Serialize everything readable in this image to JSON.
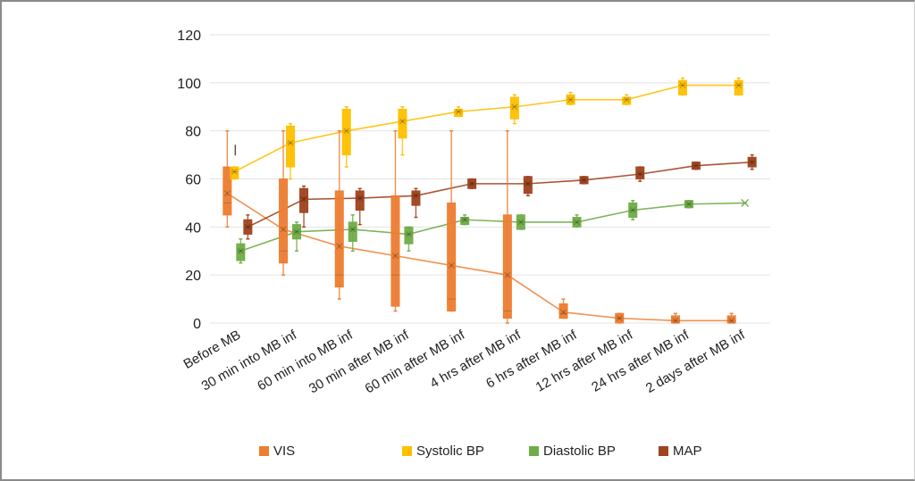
{
  "chart_data": {
    "type": "box",
    "title": "",
    "xlabel": "",
    "ylabel": "",
    "ylim": [
      0,
      120
    ],
    "yticks": [
      0,
      20,
      40,
      60,
      80,
      100,
      120
    ],
    "grid": true,
    "legend_position": "bottom",
    "categories": [
      "Before MB",
      "30 min into MB inf",
      "60 min into MB inf",
      "30 min after MB inf",
      "60 min after MB inf",
      "4 hrs after MB inf",
      "6 hrs after MB inf",
      "12 hrs after MB inf",
      "24 hrs after MB inf",
      "2 days after MB inf"
    ],
    "series": [
      {
        "name": "VIS",
        "color": "#ED7D31",
        "boxes": [
          {
            "min": 40,
            "q1": 45,
            "median": 50,
            "q3": 65,
            "max": 80,
            "mean": 54
          },
          {
            "min": 20,
            "q1": 25,
            "median": 30,
            "q3": 60,
            "max": 80,
            "mean": 39
          },
          {
            "min": 10,
            "q1": 15,
            "median": 20,
            "q3": 55,
            "max": 80,
            "mean": 32
          },
          {
            "min": 5,
            "q1": 7,
            "median": 20,
            "q3": 53,
            "max": 80,
            "mean": 28
          },
          {
            "min": 5,
            "q1": 5,
            "median": 10,
            "q3": 50,
            "max": 80,
            "mean": 24
          },
          {
            "min": 0,
            "q1": 2,
            "median": 5,
            "q3": 45,
            "max": 80,
            "mean": 20
          },
          {
            "min": 2,
            "q1": 2,
            "median": 4,
            "q3": 8,
            "max": 10,
            "mean": 4.5
          },
          {
            "min": 0,
            "q1": 0,
            "median": 2,
            "q3": 4,
            "max": 4,
            "mean": 2
          },
          {
            "min": 0,
            "q1": 0,
            "median": 1,
            "q3": 3,
            "max": 4,
            "mean": 1
          },
          {
            "min": 0,
            "q1": 0,
            "median": 1,
            "q3": 3,
            "max": 4,
            "mean": 1
          }
        ]
      },
      {
        "name": "Systolic BP",
        "color": "#FFC000",
        "boxes": [
          {
            "min": 60,
            "q1": 60,
            "median": 63,
            "q3": 65,
            "max": 65,
            "mean": 63
          },
          {
            "min": 60,
            "q1": 65,
            "median": 75,
            "q3": 82,
            "max": 83,
            "mean": 75
          },
          {
            "min": 65,
            "q1": 70,
            "median": 80,
            "q3": 89,
            "max": 90,
            "mean": 80
          },
          {
            "min": 70,
            "q1": 77,
            "median": 84,
            "q3": 89,
            "max": 90,
            "mean": 84
          },
          {
            "min": 86,
            "q1": 86,
            "median": 88,
            "q3": 89,
            "max": 90,
            "mean": 88
          },
          {
            "min": 83,
            "q1": 85,
            "median": 90,
            "q3": 94,
            "max": 95,
            "mean": 90
          },
          {
            "min": 91,
            "q1": 91,
            "median": 93,
            "q3": 95,
            "max": 96,
            "mean": 93
          },
          {
            "min": 91,
            "q1": 91,
            "median": 93,
            "q3": 94,
            "max": 95,
            "mean": 93
          },
          {
            "min": 95,
            "q1": 95,
            "median": 99,
            "q3": 101,
            "max": 102,
            "mean": 99
          },
          {
            "min": 95,
            "q1": 95,
            "median": 99,
            "q3": 101,
            "max": 102,
            "mean": 99
          }
        ]
      },
      {
        "name": "Diastolic BP",
        "color": "#70AD47",
        "boxes": [
          {
            "min": 25,
            "q1": 26,
            "median": 30,
            "q3": 33,
            "max": 35,
            "mean": 30
          },
          {
            "min": 30,
            "q1": 35,
            "median": 38,
            "q3": 41,
            "max": 42,
            "mean": 38
          },
          {
            "min": 30,
            "q1": 34,
            "median": 39,
            "q3": 42,
            "max": 45,
            "mean": 39
          },
          {
            "min": 30,
            "q1": 33,
            "median": 37,
            "q3": 40,
            "max": 40,
            "mean": 37
          },
          {
            "min": 41,
            "q1": 41,
            "median": 43,
            "q3": 44,
            "max": 45,
            "mean": 43
          },
          {
            "min": 39,
            "q1": 39,
            "median": 42,
            "q3": 45,
            "max": 45,
            "mean": 42
          },
          {
            "min": 40,
            "q1": 40,
            "median": 42,
            "q3": 44,
            "max": 45,
            "mean": 42
          },
          {
            "min": 43,
            "q1": 44,
            "median": 47,
            "q3": 50,
            "max": 51,
            "mean": 47
          },
          {
            "min": 48,
            "q1": 48,
            "median": 49.5,
            "q3": 51,
            "max": 51,
            "mean": 49.5
          },
          {
            "min": 50,
            "q1": 50,
            "median": 50,
            "q3": 50,
            "max": 50,
            "mean": 50
          }
        ]
      },
      {
        "name": "MAP",
        "color": "#A0431F",
        "boxes": [
          {
            "min": 35,
            "q1": 37,
            "median": 40,
            "q3": 43,
            "max": 45,
            "mean": 40
          },
          {
            "min": 40,
            "q1": 46,
            "median": 52,
            "q3": 56,
            "max": 57,
            "mean": 51.5
          },
          {
            "min": 41,
            "q1": 47,
            "median": 52,
            "q3": 55,
            "max": 56,
            "mean": 52
          },
          {
            "min": 44,
            "q1": 49,
            "median": 53,
            "q3": 55,
            "max": 56,
            "mean": 53
          },
          {
            "min": 56,
            "q1": 56,
            "median": 58,
            "q3": 60,
            "max": 60,
            "mean": 58
          },
          {
            "min": 53,
            "q1": 54,
            "median": 58,
            "q3": 61,
            "max": 61,
            "mean": 58
          },
          {
            "min": 58,
            "q1": 58,
            "median": 59.5,
            "q3": 61,
            "max": 61,
            "mean": 59.5
          },
          {
            "min": 59,
            "q1": 60,
            "median": 62,
            "q3": 65,
            "max": 65,
            "mean": 62
          },
          {
            "min": 64,
            "q1": 64,
            "median": 65.5,
            "q3": 67,
            "max": 67,
            "mean": 65.5
          },
          {
            "min": 64,
            "q1": 65,
            "median": 67,
            "q3": 69,
            "max": 70,
            "mean": 67
          }
        ]
      }
    ],
    "annotations": [
      {
        "text": "|",
        "category": "Before MB",
        "value": 72
      }
    ]
  },
  "legend": [
    {
      "label": "VIS",
      "color": "#ED7D31"
    },
    {
      "label": "Systolic BP",
      "color": "#FFC000"
    },
    {
      "label": "Diastolic BP",
      "color": "#70AD47"
    },
    {
      "label": "MAP",
      "color": "#A0431F"
    }
  ]
}
